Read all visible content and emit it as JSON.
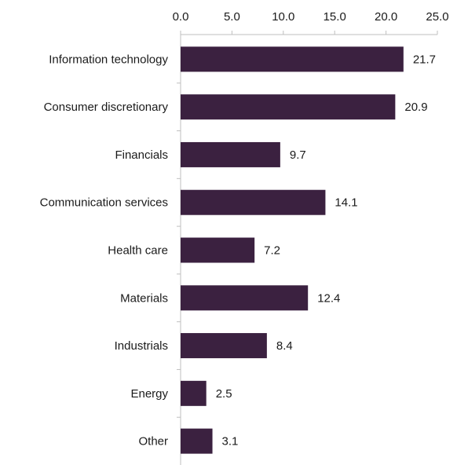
{
  "chart_data": {
    "type": "bar",
    "orientation": "horizontal",
    "categories": [
      "Information technology",
      "Consumer discretionary",
      "Financials",
      "Communication services",
      "Health care",
      "Materials",
      "Industrials",
      "Energy",
      "Other"
    ],
    "values": [
      21.7,
      20.9,
      9.7,
      14.1,
      7.2,
      12.4,
      8.4,
      2.5,
      3.1
    ],
    "data_labels": [
      "21.7",
      "20.9",
      "9.7",
      "14.1",
      "7.2",
      "12.4",
      "8.4",
      "2.5",
      "3.1"
    ],
    "x_ticks": [
      "0.0",
      "5.0",
      "10.0",
      "15.0",
      "20.0",
      "25.0"
    ],
    "xlim": [
      0,
      25
    ],
    "x_axis_position": "top",
    "grid": false,
    "legend": "none",
    "title": "",
    "xlabel": "",
    "ylabel": "",
    "bar_color": "#3b2140"
  }
}
